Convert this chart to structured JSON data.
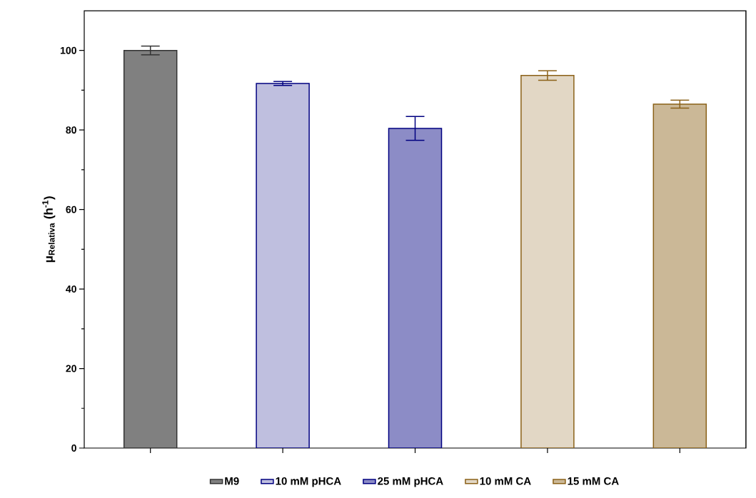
{
  "chart_data": {
    "type": "bar",
    "ylabel": "μ$_{Relativa}$ (h$^{-1}$)",
    "categories": [
      null,
      null,
      null,
      null,
      null
    ],
    "series": [
      {
        "name": "M9",
        "color": "#808080",
        "values": [
          100,
          null,
          null,
          null,
          null
        ],
        "errors": [
          1.1,
          null,
          null,
          null,
          null
        ]
      },
      {
        "name": "10 mM pHCA",
        "color": "#000080",
        "values": [
          null,
          91.7,
          null,
          null,
          null
        ],
        "errors": [
          null,
          0.5,
          null,
          null,
          null
        ]
      },
      {
        "name": "25 mM pHCA",
        "color": "#000080",
        "values": [
          null,
          null,
          80.4,
          null,
          null
        ],
        "errors": [
          null,
          null,
          3,
          null,
          null
        ]
      },
      {
        "name": "10 mM CA",
        "color": "#8b6118",
        "values": [
          null,
          null,
          null,
          93.7,
          null
        ],
        "errors": [
          null,
          null,
          null,
          1.2,
          null
        ]
      },
      {
        "name": "15 mM CA",
        "color": "#8b6118",
        "values": [
          null,
          null,
          null,
          null,
          86.5
        ],
        "errors": [
          null,
          null,
          null,
          null,
          1
        ]
      }
    ],
    "ylim": [
      0,
      110
    ],
    "yticks": [
      0,
      20,
      40,
      60,
      80,
      100
    ],
    "legend": "bottom",
    "grid": false
  }
}
